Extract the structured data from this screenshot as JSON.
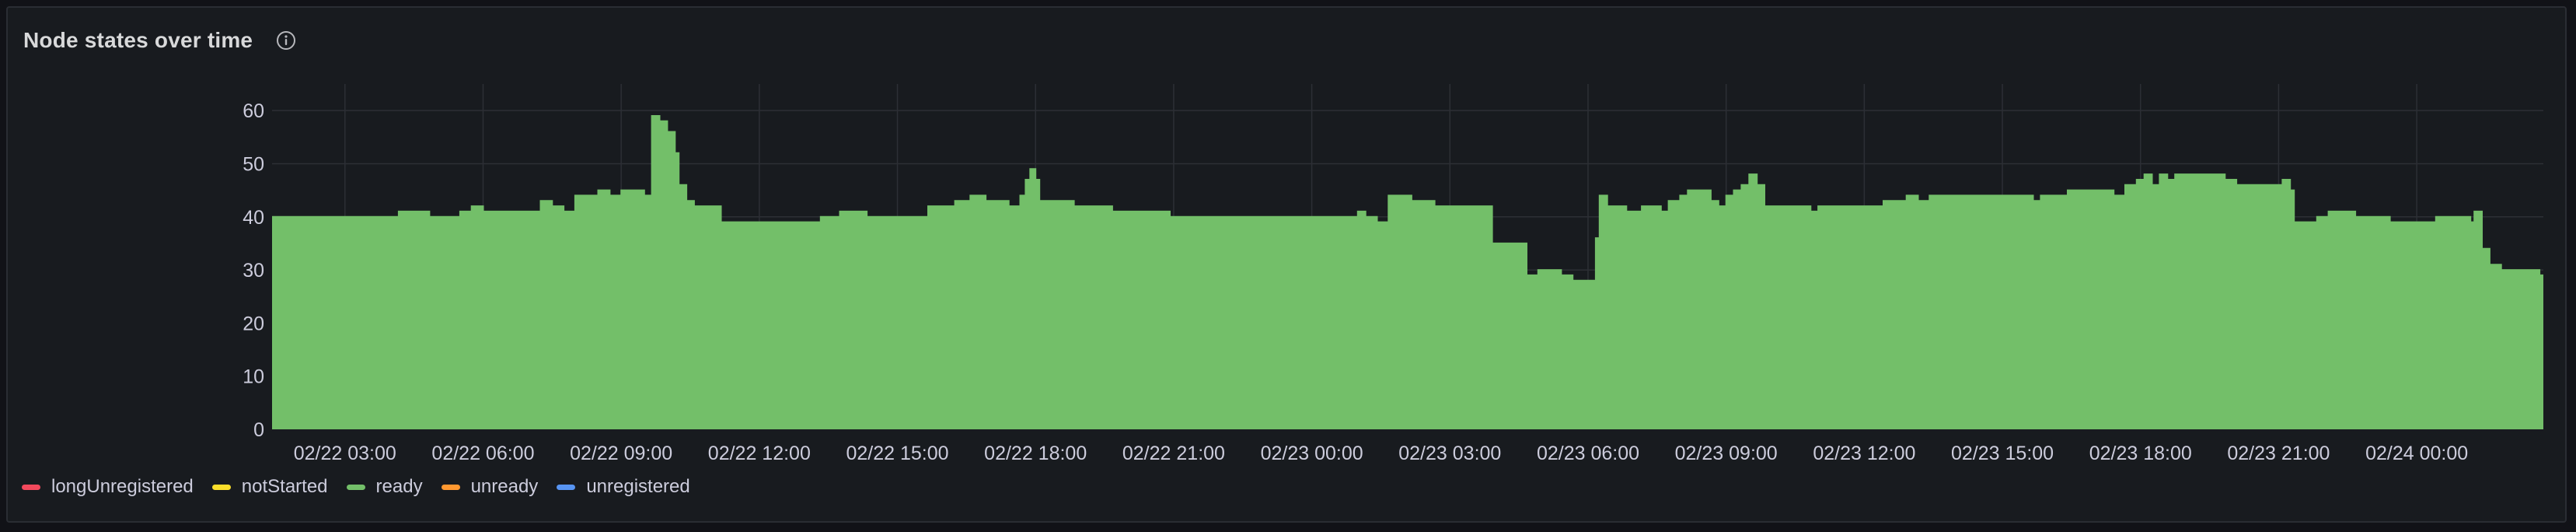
{
  "panel": {
    "title": "Node states over time",
    "info_icon": "info-circle-icon"
  },
  "chart_data": {
    "type": "area",
    "stacked": true,
    "grid": true,
    "legend_position": "bottom-left",
    "ylim": [
      0,
      65
    ],
    "y_ticks": [
      0,
      10,
      20,
      30,
      40,
      50,
      60
    ],
    "x_range": [
      "02/22 01:25",
      "02/24 02:45"
    ],
    "x_ticks": [
      "02/22 03:00",
      "02/22 06:00",
      "02/22 09:00",
      "02/22 12:00",
      "02/22 15:00",
      "02/22 18:00",
      "02/22 21:00",
      "02/23 00:00",
      "02/23 03:00",
      "02/23 06:00",
      "02/23 09:00",
      "02/23 12:00",
      "02/23 15:00",
      "02/23 18:00",
      "02/23 21:00",
      "02/24 00:00"
    ],
    "series": [
      {
        "name": "longUnregistered",
        "color": "#f2495c"
      },
      {
        "name": "notStarted",
        "color": "#fade2a"
      },
      {
        "name": "ready",
        "color": "#73bf69",
        "points": [
          [
            "02/22 01:25",
            40
          ],
          [
            "02/22 03:40",
            40
          ],
          [
            "02/22 04:10",
            41
          ],
          [
            "02/22 04:50",
            40
          ],
          [
            "02/22 05:30",
            41
          ],
          [
            "02/22 05:45",
            42
          ],
          [
            "02/22 06:00",
            41
          ],
          [
            "02/22 07:15",
            43
          ],
          [
            "02/22 07:30",
            42
          ],
          [
            "02/22 07:45",
            41
          ],
          [
            "02/22 08:00",
            44
          ],
          [
            "02/22 08:30",
            45
          ],
          [
            "02/22 08:45",
            44
          ],
          [
            "02/22 09:00",
            45
          ],
          [
            "02/22 09:30",
            44
          ],
          [
            "02/22 09:40",
            59
          ],
          [
            "02/22 09:50",
            58
          ],
          [
            "02/22 10:00",
            56
          ],
          [
            "02/22 10:10",
            52
          ],
          [
            "02/22 10:15",
            46
          ],
          [
            "02/22 10:25",
            43
          ],
          [
            "02/22 10:35",
            42
          ],
          [
            "02/22 11:10",
            39
          ],
          [
            "02/22 13:20",
            40
          ],
          [
            "02/22 13:45",
            41
          ],
          [
            "02/22 14:20",
            40
          ],
          [
            "02/22 15:40",
            42
          ],
          [
            "02/22 16:15",
            43
          ],
          [
            "02/22 16:35",
            44
          ],
          [
            "02/22 16:55",
            43
          ],
          [
            "02/22 17:25",
            42
          ],
          [
            "02/22 17:40",
            44
          ],
          [
            "02/22 17:47",
            47
          ],
          [
            "02/22 17:53",
            49
          ],
          [
            "02/22 18:00",
            47
          ],
          [
            "02/22 18:05",
            43
          ],
          [
            "02/22 18:50",
            42
          ],
          [
            "02/22 19:40",
            41
          ],
          [
            "02/22 20:55",
            40
          ],
          [
            "02/23 01:00",
            41
          ],
          [
            "02/23 01:10",
            40
          ],
          [
            "02/23 01:25",
            39
          ],
          [
            "02/23 01:40",
            44
          ],
          [
            "02/23 02:10",
            43
          ],
          [
            "02/23 02:40",
            42
          ],
          [
            "02/23 03:55",
            35
          ],
          [
            "02/23 04:40",
            29
          ],
          [
            "02/23 04:55",
            30
          ],
          [
            "02/23 05:25",
            29
          ],
          [
            "02/23 05:40",
            28
          ],
          [
            "02/23 06:10",
            36
          ],
          [
            "02/23 06:15",
            44
          ],
          [
            "02/23 06:25",
            42
          ],
          [
            "02/23 06:50",
            41
          ],
          [
            "02/23 07:10",
            42
          ],
          [
            "02/23 07:35",
            41
          ],
          [
            "02/23 07:45",
            43
          ],
          [
            "02/23 08:00",
            44
          ],
          [
            "02/23 08:10",
            45
          ],
          [
            "02/23 08:40",
            43
          ],
          [
            "02/23 08:50",
            42
          ],
          [
            "02/23 09:00",
            44
          ],
          [
            "02/23 09:10",
            45
          ],
          [
            "02/23 09:20",
            46
          ],
          [
            "02/23 09:30",
            48
          ],
          [
            "02/23 09:40",
            46
          ],
          [
            "02/23 09:50",
            42
          ],
          [
            "02/23 10:50",
            41
          ],
          [
            "02/23 11:00",
            42
          ],
          [
            "02/23 12:25",
            43
          ],
          [
            "02/23 12:55",
            44
          ],
          [
            "02/23 13:10",
            43
          ],
          [
            "02/23 13:25",
            44
          ],
          [
            "02/23 15:40",
            43
          ],
          [
            "02/23 15:50",
            44
          ],
          [
            "02/23 16:25",
            45
          ],
          [
            "02/23 17:25",
            44
          ],
          [
            "02/23 17:40",
            46
          ],
          [
            "02/23 17:55",
            47
          ],
          [
            "02/23 18:05",
            48
          ],
          [
            "02/23 18:15",
            46
          ],
          [
            "02/23 18:25",
            48
          ],
          [
            "02/23 18:35",
            47
          ],
          [
            "02/23 18:45",
            48
          ],
          [
            "02/23 19:50",
            47
          ],
          [
            "02/23 20:05",
            46
          ],
          [
            "02/23 21:05",
            47
          ],
          [
            "02/23 21:15",
            45
          ],
          [
            "02/23 21:20",
            39
          ],
          [
            "02/23 21:50",
            40
          ],
          [
            "02/23 22:05",
            41
          ],
          [
            "02/23 22:40",
            40
          ],
          [
            "02/23 23:25",
            39
          ],
          [
            "02/24 00:25",
            40
          ],
          [
            "02/24 01:10",
            39
          ],
          [
            "02/24 01:15",
            41
          ],
          [
            "02/24 01:25",
            34
          ],
          [
            "02/24 01:35",
            31
          ],
          [
            "02/24 01:50",
            30
          ],
          [
            "02/24 02:40",
            29
          ],
          [
            "02/24 02:45",
            29
          ]
        ]
      },
      {
        "name": "unready",
        "color": "#ff9830"
      },
      {
        "name": "unregistered",
        "color": "#5794f2"
      }
    ]
  }
}
